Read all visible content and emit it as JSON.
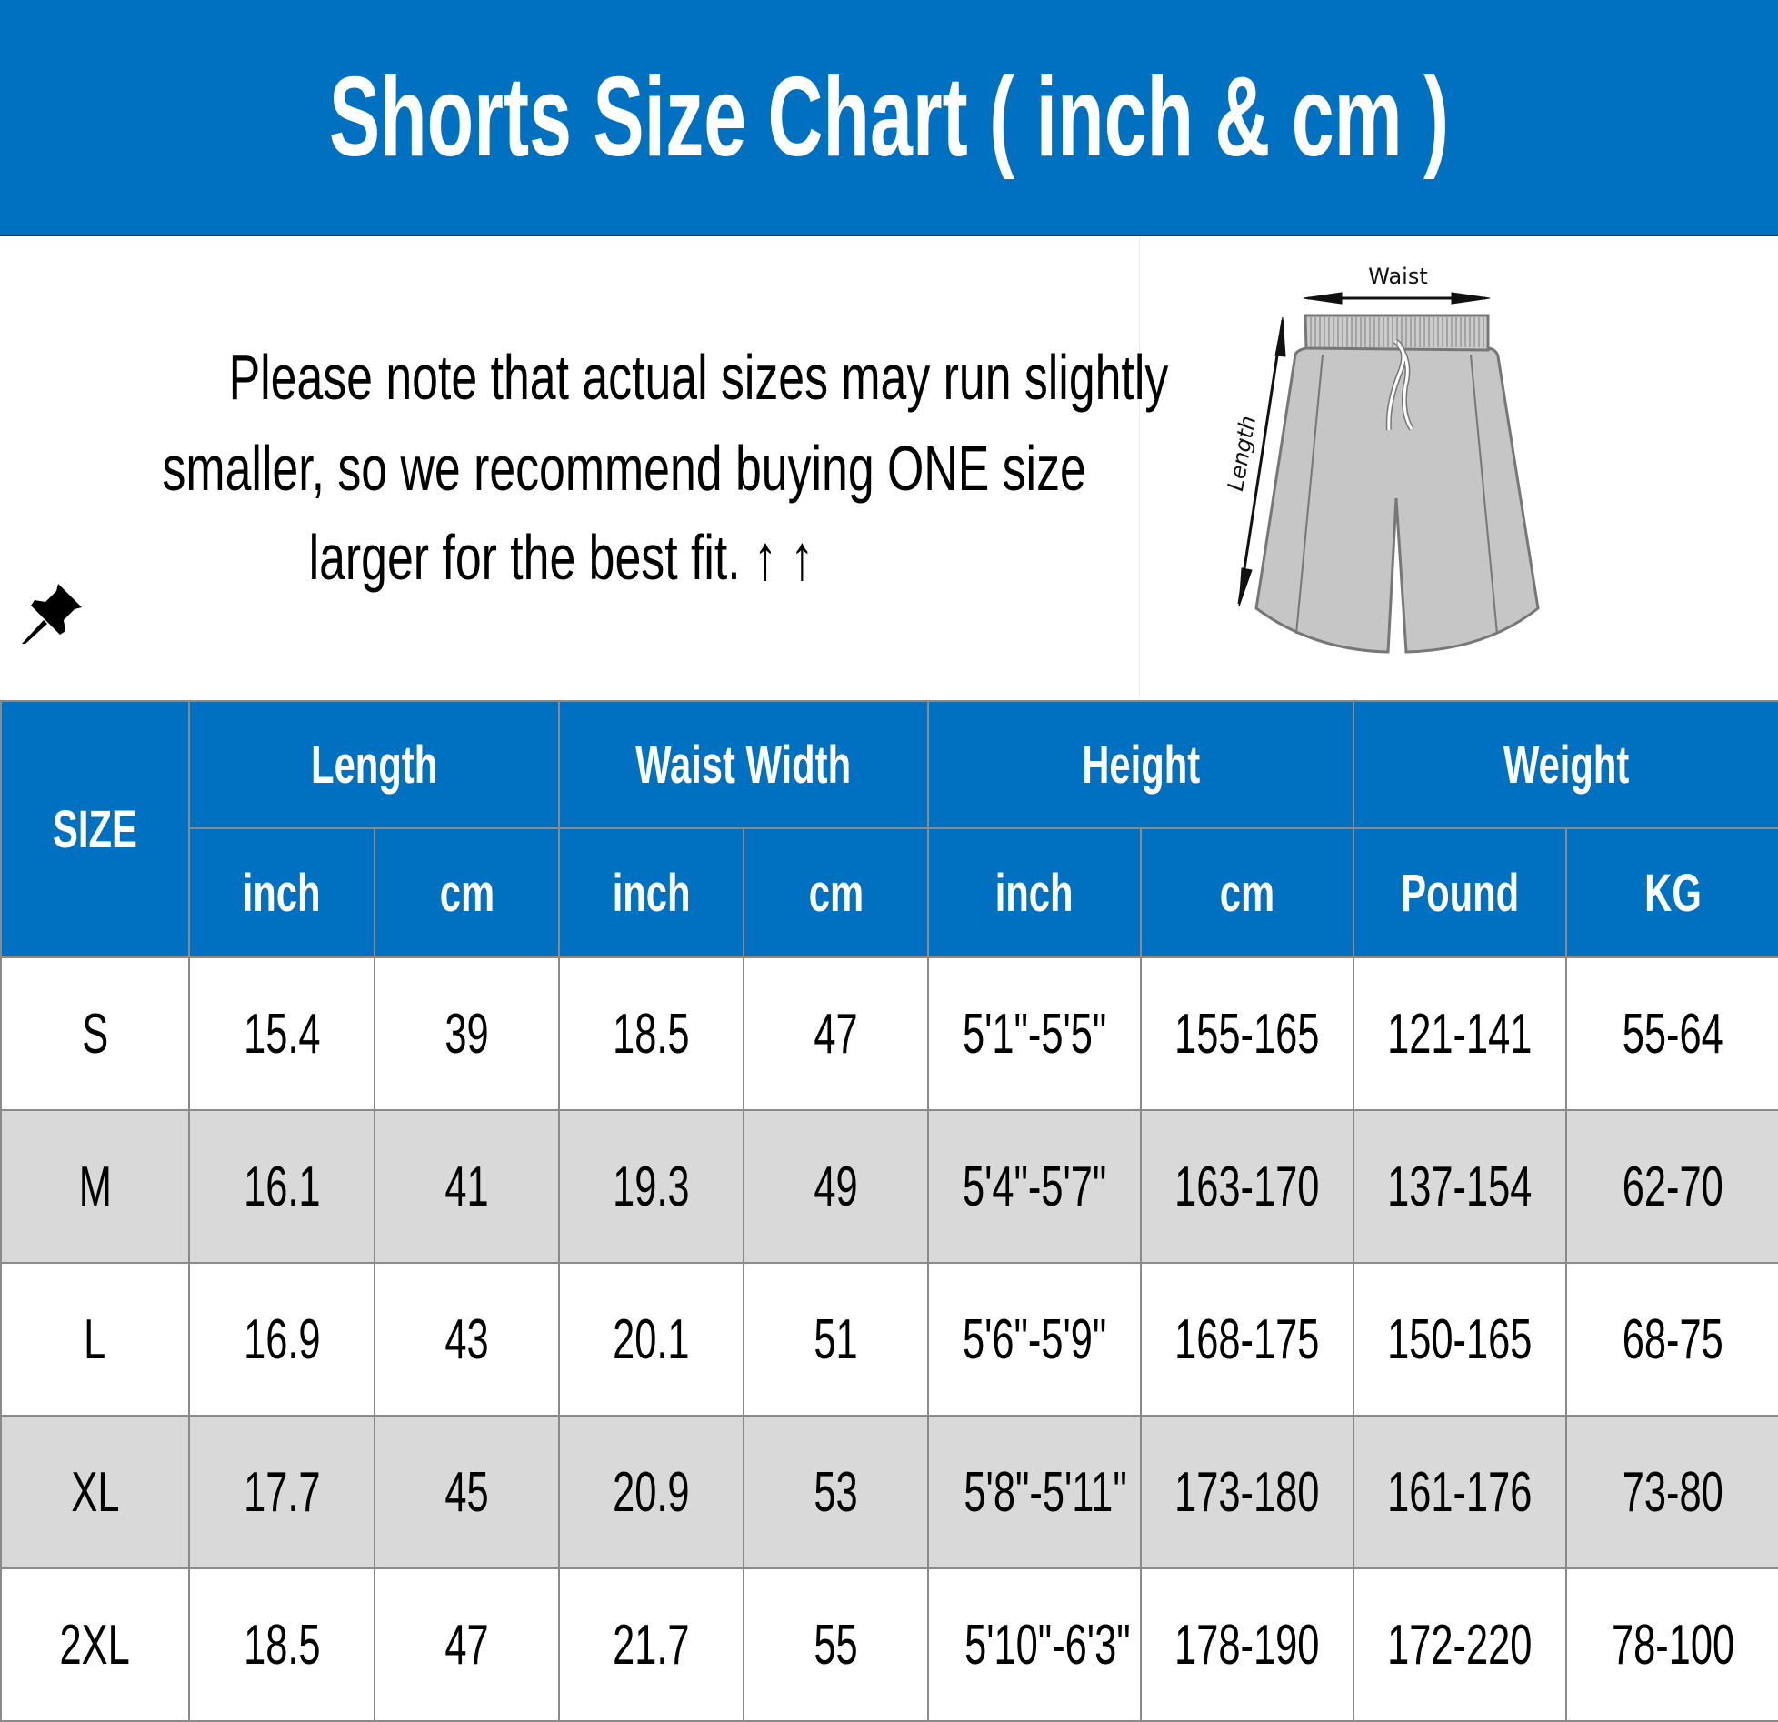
{
  "title": "Shorts Size Chart ( inch & cm )",
  "note": {
    "icon": "pushpin-icon",
    "lines": [
      "Please note that actual sizes may run slightly",
      "smaller, so we recommend buying ONE size",
      "larger for the best fit. ↑ ↑"
    ]
  },
  "figure": {
    "waist_label": "Waist",
    "length_label": "Length"
  },
  "colors": {
    "header_blue": "#0070C0",
    "alt_row": "#D9D9D9",
    "grid": "#8A8A8A"
  },
  "table": {
    "size_header": "SIZE",
    "groups": [
      "Length",
      "Waist Width",
      "Height",
      "Weight"
    ],
    "units": [
      "inch",
      "cm",
      "inch",
      "cm",
      "inch",
      "cm",
      "Pound",
      "KG"
    ],
    "rows": [
      [
        "S",
        "15.4",
        "39",
        "18.5",
        "47",
        "5'1\"-5'5\"",
        "155-165",
        "121-141",
        "55-64"
      ],
      [
        "M",
        "16.1",
        "41",
        "19.3",
        "49",
        "5'4\"-5'7\"",
        "163-170",
        "137-154",
        "62-70"
      ],
      [
        "L",
        "16.9",
        "43",
        "20.1",
        "51",
        "5'6\"-5'9\"",
        "168-175",
        "150-165",
        "68-75"
      ],
      [
        "XL",
        "17.7",
        "45",
        "20.9",
        "53",
        "5'8\"-5'11\"",
        "173-180",
        "161-176",
        "73-80"
      ],
      [
        "2XL",
        "18.5",
        "47",
        "21.7",
        "55",
        "5'10\"-6'3\"",
        "178-190",
        "172-220",
        "78-100"
      ]
    ]
  }
}
